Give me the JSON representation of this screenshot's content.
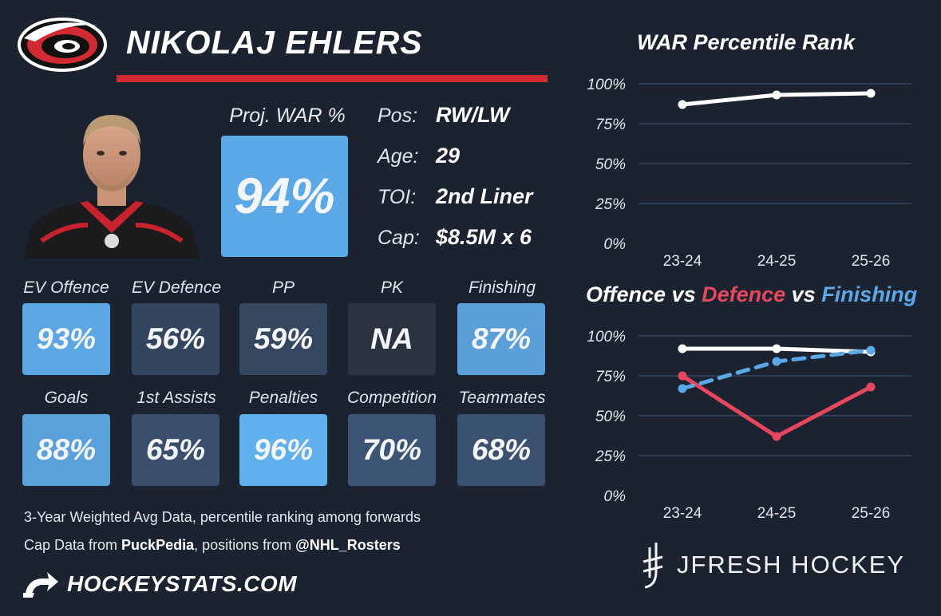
{
  "player": {
    "name": "NIKOLAJ EHLERS",
    "team_logo": "carolina-hurricanes-logo",
    "photo": "player-headshot"
  },
  "projected": {
    "label": "Proj. WAR %",
    "value": "94%",
    "color": "#5aa8e6"
  },
  "info": [
    {
      "label": "Pos:",
      "value": "RW/LW"
    },
    {
      "label": "Age:",
      "value": "29"
    },
    {
      "label": "TOI:",
      "value": "2nd Liner"
    },
    {
      "label": "Cap:",
      "value": "$8.5M x 6"
    }
  ],
  "stats": [
    {
      "label": "EV Offence",
      "value": "93%",
      "color": "#5ba7e3"
    },
    {
      "label": "EV Defence",
      "value": "56%",
      "color": "#33455f"
    },
    {
      "label": "PP",
      "value": "59%",
      "color": "#34475f"
    },
    {
      "label": "PK",
      "value": "NA",
      "color": "#2b3340"
    },
    {
      "label": "Finishing",
      "value": "87%",
      "color": "#5a9fd8"
    },
    {
      "label": "Goals",
      "value": "88%",
      "color": "#5aa0da"
    },
    {
      "label": "1st Assists",
      "value": "65%",
      "color": "#3a4f6c"
    },
    {
      "label": "Penalties",
      "value": "96%",
      "color": "#5fb0ec"
    },
    {
      "label": "Competition",
      "value": "70%",
      "color": "#3c5473"
    },
    {
      "label": "Teammates",
      "value": "68%",
      "color": "#3a516f"
    }
  ],
  "footnotes": {
    "line1": "3-Year Weighted Avg Data, percentile ranking among forwards",
    "line2_prefix": "Cap Data from ",
    "line2_source1": "PuckPedia",
    "line2_mid": ", positions from ",
    "line2_source2": "@NHL_Rosters"
  },
  "branding": {
    "left": "HOCKEYSTATS.COM",
    "right": "JFRESH HOCKEY"
  },
  "chart_data": [
    {
      "type": "line",
      "title": "WAR Percentile Rank",
      "categories": [
        "23-24",
        "24-25",
        "25-26"
      ],
      "yticks": [
        "100%",
        "75%",
        "50%",
        "25%",
        "0%"
      ],
      "ylim": [
        0,
        100
      ],
      "grid": true,
      "series": [
        {
          "values": [
            87,
            93,
            94
          ],
          "color": "#ffffff",
          "dashed": false
        }
      ]
    },
    {
      "type": "line",
      "title_parts": [
        "Offence",
        " vs ",
        "Defence",
        " vs ",
        "Finishing"
      ],
      "categories": [
        "23-24",
        "24-25",
        "25-26"
      ],
      "yticks": [
        "100%",
        "75%",
        "50%",
        "25%",
        "0%"
      ],
      "ylim": [
        0,
        100
      ],
      "grid": true,
      "series": [
        {
          "name": "Offence",
          "values": [
            92,
            92,
            90
          ],
          "color": "#ffffff",
          "dashed": false
        },
        {
          "name": "Defence",
          "values": [
            75,
            37,
            68
          ],
          "color": "#e8465c",
          "dashed": false
        },
        {
          "name": "Finishing",
          "values": [
            67,
            84,
            91
          ],
          "color": "#5aa8e6",
          "dashed": true
        }
      ]
    }
  ]
}
